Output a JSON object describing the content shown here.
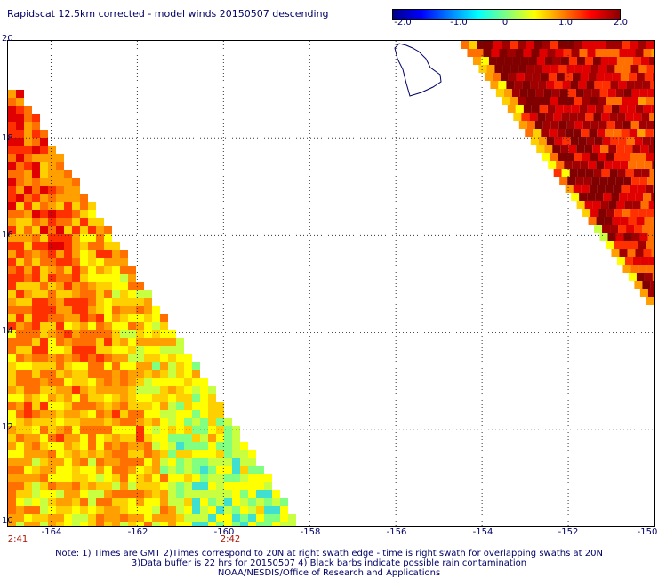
{
  "title": "Rapidscat 12.5km corrected - model winds 20150507 descending",
  "colorbar": {
    "stops": [
      "#00008b",
      "#0000ff",
      "#0080ff",
      "#00ffff",
      "#80ff80",
      "#ffff00",
      "#ff8000",
      "#ff0000",
      "#8b0000"
    ],
    "range": [
      -2.0,
      2.0
    ],
    "ticks": [
      "-2.0",
      "-1.0",
      "0",
      "1.0",
      "2.0"
    ]
  },
  "y_labels": [
    "20",
    "18",
    "16",
    "14",
    "12",
    "10"
  ],
  "x_labels": [
    "-164",
    "-162",
    "-160",
    "-158",
    "-156",
    "-154",
    "-152",
    "-150"
  ],
  "swath_times": [
    "2:41",
    "2:42"
  ],
  "notes": [
    "Note: 1) Times are GMT 2)Times correspond to 20N at right swath edge - time is right swath for overlapping swaths at 20N",
    "3)Data buffer is 22 hrs for 20150507 4) Black barbs indicate possible rain contamination",
    "NOAA/NESDIS/Office of Research and Applications"
  ],
  "map": {
    "lon_range": [
      -165,
      -150
    ],
    "lat_range": [
      10,
      20
    ],
    "grid_lons": [
      -164,
      -162,
      -160,
      -158,
      -156,
      -154,
      -152,
      -150
    ],
    "grid_lats": [
      12,
      14,
      16,
      18
    ],
    "coastline": "big-island-hawaii"
  }
}
